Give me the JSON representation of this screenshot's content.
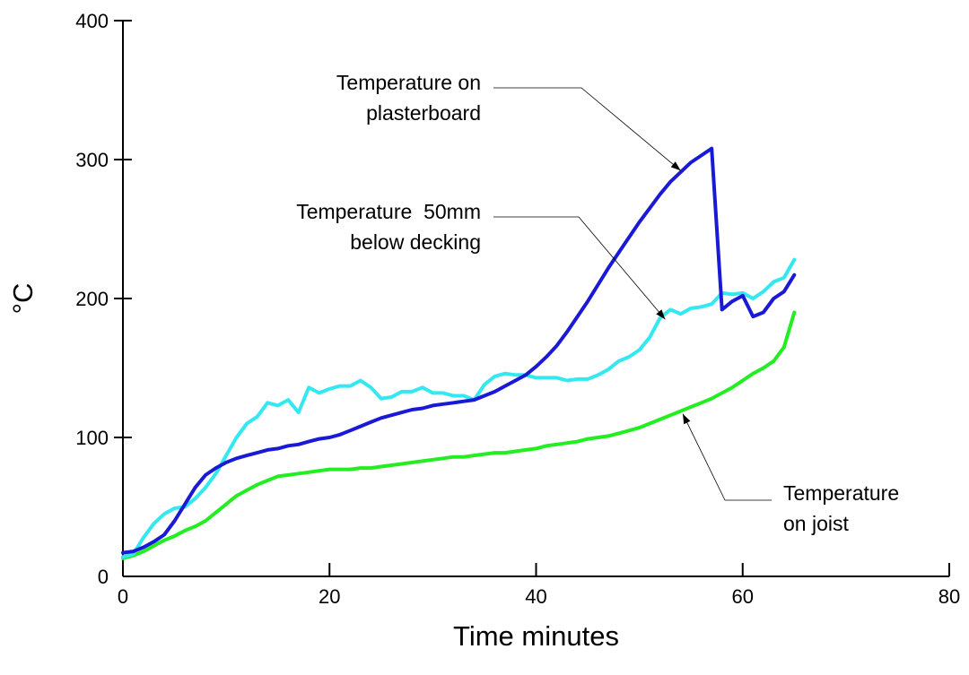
{
  "chart_data": {
    "type": "line",
    "title": "",
    "xlabel": "Time minutes",
    "ylabel": "°C",
    "xlim": [
      0,
      80
    ],
    "ylim": [
      0,
      400
    ],
    "x_ticks": [
      0,
      20,
      40,
      60,
      80
    ],
    "y_ticks": [
      0,
      100,
      200,
      300,
      400
    ],
    "grid": false,
    "series": [
      {
        "key": "plasterboard",
        "color": "#1a1ad6",
        "x": [
          0,
          1,
          2,
          3,
          4,
          5,
          6,
          7,
          8,
          9,
          10,
          11,
          12,
          13,
          14,
          15,
          16,
          17,
          18,
          19,
          20,
          21,
          22,
          23,
          24,
          25,
          26,
          27,
          28,
          29,
          30,
          31,
          32,
          33,
          34,
          35,
          36,
          37,
          38,
          39,
          40,
          41,
          42,
          43,
          44,
          45,
          46,
          47,
          48,
          49,
          50,
          51,
          52,
          53,
          54,
          55,
          56,
          57,
          58,
          59,
          60,
          61,
          62,
          63,
          64,
          65
        ],
        "y": [
          17,
          18,
          21,
          25,
          30,
          40,
          52,
          64,
          73,
          78,
          82,
          85,
          87,
          89,
          91,
          92,
          94,
          95,
          97,
          99,
          100,
          102,
          105,
          108,
          111,
          114,
          116,
          118,
          120,
          121,
          123,
          124,
          125,
          126,
          127,
          130,
          133,
          137,
          141,
          145,
          151,
          158,
          166,
          176,
          187,
          198,
          210,
          222,
          233,
          244,
          255,
          265,
          275,
          284,
          291,
          298,
          303,
          308,
          192,
          198,
          202,
          187,
          190,
          200,
          205,
          217
        ]
      },
      {
        "key": "decking",
        "color": "#33e8f0",
        "x": [
          0,
          1,
          2,
          3,
          4,
          5,
          6,
          7,
          8,
          9,
          10,
          11,
          12,
          13,
          14,
          15,
          16,
          17,
          18,
          19,
          20,
          21,
          22,
          23,
          24,
          25,
          26,
          27,
          28,
          29,
          30,
          31,
          32,
          33,
          34,
          35,
          36,
          37,
          38,
          39,
          40,
          41,
          42,
          43,
          44,
          45,
          46,
          47,
          48,
          49,
          50,
          51,
          52,
          53,
          54,
          55,
          56,
          57,
          58,
          59,
          60,
          61,
          62,
          63,
          64,
          65
        ],
        "y": [
          14,
          16,
          28,
          38,
          45,
          49,
          50,
          56,
          64,
          74,
          87,
          100,
          110,
          115,
          125,
          123,
          127,
          118,
          136,
          132,
          135,
          137,
          137,
          141,
          136,
          128,
          129,
          133,
          133,
          136,
          132,
          132,
          130,
          130,
          127,
          138,
          144,
          146,
          145,
          145,
          143,
          143,
          143,
          141,
          142,
          142,
          145,
          149,
          155,
          158,
          163,
          172,
          186,
          192,
          189,
          193,
          194,
          196,
          204,
          203,
          204,
          200,
          205,
          212,
          215,
          228
        ]
      },
      {
        "key": "joist",
        "color": "#22ee22",
        "x": [
          0,
          1,
          2,
          3,
          4,
          5,
          6,
          7,
          8,
          9,
          10,
          11,
          12,
          13,
          14,
          15,
          16,
          17,
          18,
          19,
          20,
          21,
          22,
          23,
          24,
          25,
          26,
          27,
          28,
          29,
          30,
          31,
          32,
          33,
          34,
          35,
          36,
          37,
          38,
          39,
          40,
          41,
          42,
          43,
          44,
          45,
          46,
          47,
          48,
          49,
          50,
          51,
          52,
          53,
          54,
          55,
          56,
          57,
          58,
          59,
          60,
          61,
          62,
          63,
          64,
          65
        ],
        "y": [
          13,
          15,
          18,
          22,
          26,
          29,
          33,
          36,
          40,
          46,
          52,
          58,
          62,
          66,
          69,
          72,
          73,
          74,
          75,
          76,
          77,
          77,
          77,
          78,
          78,
          79,
          80,
          81,
          82,
          83,
          84,
          85,
          86,
          86,
          87,
          88,
          89,
          89,
          90,
          91,
          92,
          94,
          95,
          96,
          97,
          99,
          100,
          101,
          103,
          105,
          107,
          110,
          113,
          116,
          119,
          122,
          125,
          128,
          132,
          136,
          141,
          146,
          150,
          155,
          165,
          190
        ]
      }
    ],
    "annotations": [
      {
        "key": "plasterboard",
        "lines": [
          "Temperature on",
          "plasterboard"
        ]
      },
      {
        "key": "decking",
        "lines": [
          "Temperature  50mm",
          "below decking"
        ]
      },
      {
        "key": "joist",
        "lines": [
          "Temperature",
          "on joist"
        ]
      }
    ]
  }
}
